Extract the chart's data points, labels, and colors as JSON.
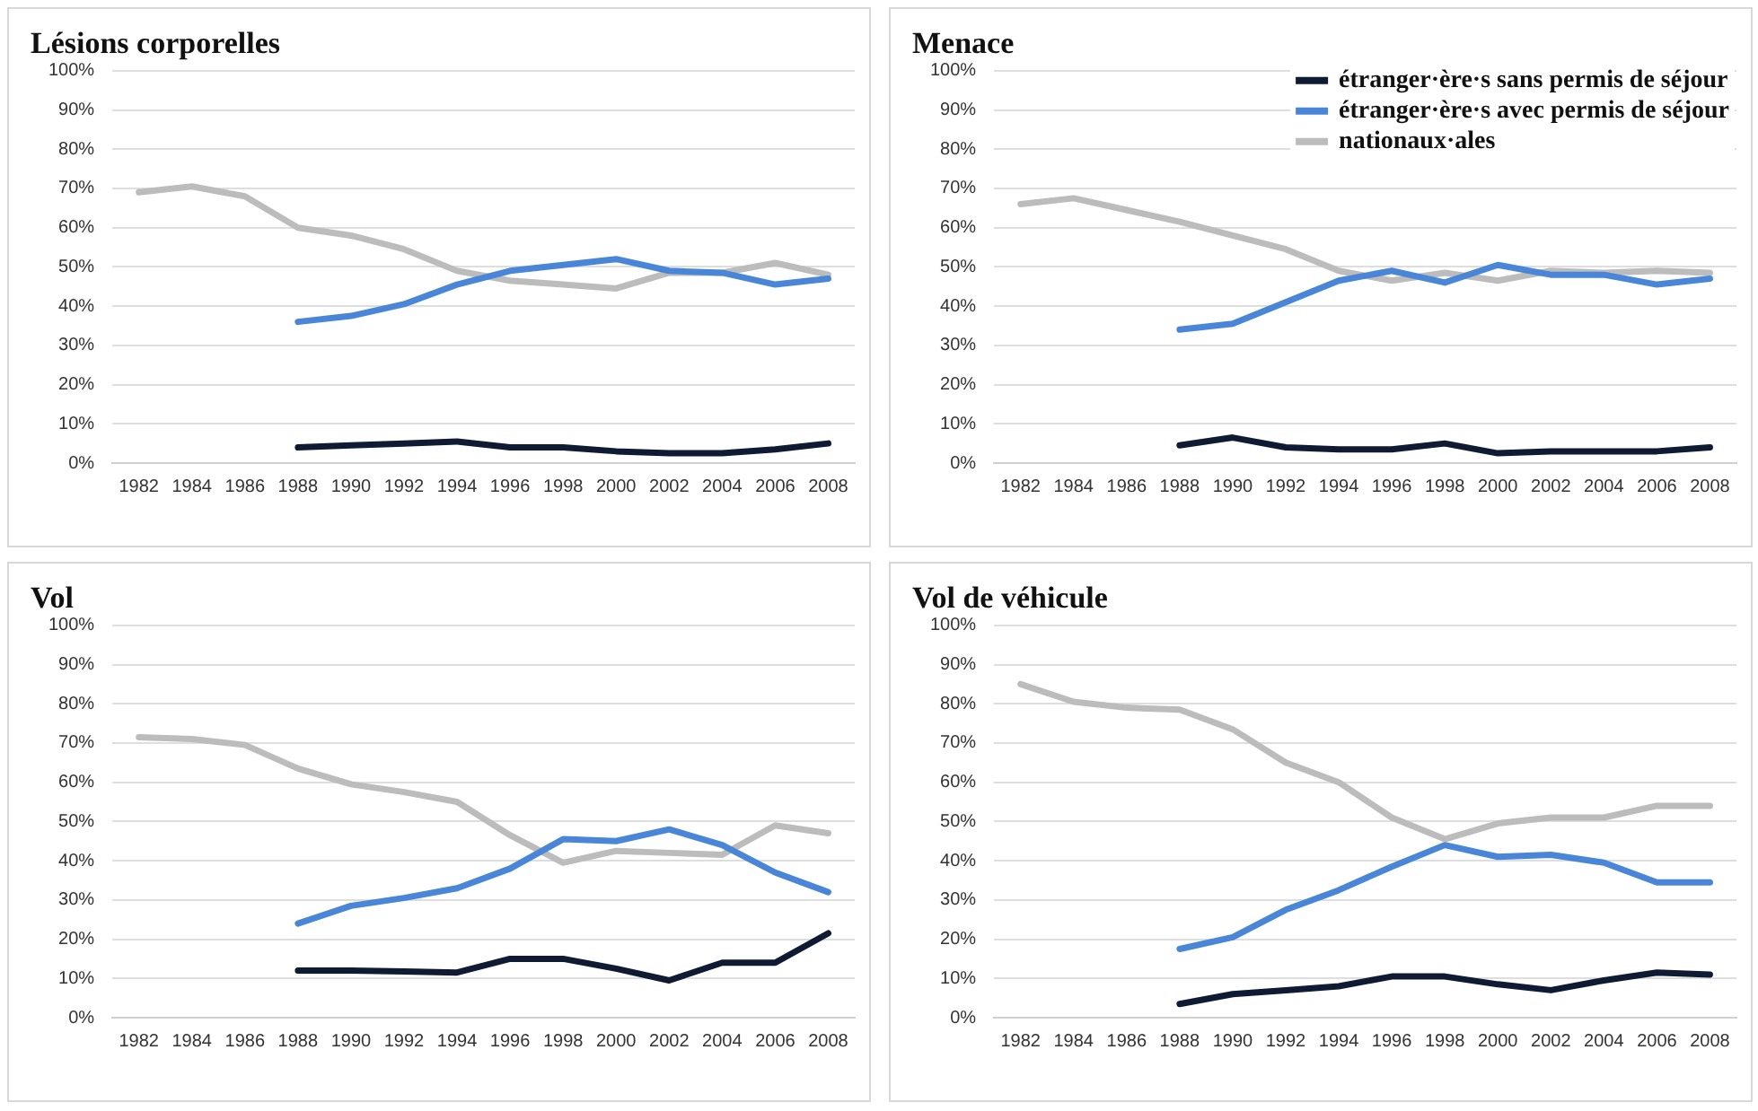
{
  "chart_data": [
    {
      "type": "line",
      "title": "Lésions corporelles",
      "categories": [
        "1982",
        "1984",
        "1986",
        "1988",
        "1990",
        "1992",
        "1994",
        "1996",
        "1998",
        "2000",
        "2002",
        "2004",
        "2006",
        "2008"
      ],
      "ylim": [
        0,
        100
      ],
      "yticks": [
        {
          "value": 0,
          "label": "0%"
        },
        {
          "value": 10,
          "label": "10%"
        },
        {
          "value": 20,
          "label": "20%"
        },
        {
          "value": 30,
          "label": "30%"
        },
        {
          "value": 40,
          "label": "40%"
        },
        {
          "value": 50,
          "label": "50%"
        },
        {
          "value": 60,
          "label": "60%"
        },
        {
          "value": 70,
          "label": "70%"
        },
        {
          "value": 80,
          "label": "80%"
        },
        {
          "value": 90,
          "label": "90%"
        },
        {
          "value": 100,
          "label": "100%"
        }
      ],
      "grid": "y",
      "marker": "none",
      "line_style": "solid",
      "series": [
        {
          "color": "#0f1a33",
          "values": [
            null,
            null,
            null,
            4,
            4.5,
            5,
            5.5,
            4,
            4,
            3,
            2.5,
            2.5,
            3.5,
            5
          ]
        },
        {
          "color": "#4a86d8",
          "values": [
            null,
            null,
            null,
            36,
            37.5,
            40.5,
            45.5,
            49,
            50.5,
            52,
            49,
            48.5,
            45.5,
            47
          ]
        },
        {
          "color": "#bcbcbc",
          "values": [
            69,
            70.5,
            68,
            60,
            58,
            54.5,
            49,
            46.5,
            45.5,
            44.5,
            48.5,
            48.5,
            51,
            48
          ]
        }
      ]
    },
    {
      "type": "line",
      "title": "Menace",
      "categories": [
        "1982",
        "1984",
        "1986",
        "1988",
        "1990",
        "1992",
        "1994",
        "1996",
        "1998",
        "2000",
        "2002",
        "2004",
        "2006",
        "2008"
      ],
      "ylim": [
        0,
        100
      ],
      "yticks": [
        {
          "value": 0,
          "label": "0%"
        },
        {
          "value": 10,
          "label": "10%"
        },
        {
          "value": 20,
          "label": "20%"
        },
        {
          "value": 30,
          "label": "30%"
        },
        {
          "value": 40,
          "label": "40%"
        },
        {
          "value": 50,
          "label": "50%"
        },
        {
          "value": 60,
          "label": "60%"
        },
        {
          "value": 70,
          "label": "70%"
        },
        {
          "value": 80,
          "label": "80%"
        },
        {
          "value": 90,
          "label": "90%"
        },
        {
          "value": 100,
          "label": "100%"
        }
      ],
      "grid": "y",
      "marker": "none",
      "line_style": "solid",
      "legend": "top right",
      "series": [
        {
          "name": "étranger·ère·s sans permis de séjour",
          "color": "#0f1a33",
          "values": [
            null,
            null,
            null,
            4.5,
            6.5,
            4,
            3.5,
            3.5,
            5,
            2.5,
            3,
            3,
            3,
            4
          ]
        },
        {
          "name": "étranger·ère·s avec permis de séjour",
          "color": "#4a86d8",
          "values": [
            null,
            null,
            null,
            34,
            35.5,
            41,
            46.5,
            49,
            46,
            50.5,
            48,
            48,
            45.5,
            47
          ]
        },
        {
          "name": "nationaux·ales",
          "color": "#bcbcbc",
          "values": [
            66,
            67.5,
            64.5,
            61.5,
            58,
            54.5,
            49,
            46.5,
            48.5,
            46.5,
            49,
            48.5,
            49,
            48.5
          ]
        }
      ]
    },
    {
      "type": "line",
      "title": "Vol",
      "categories": [
        "1982",
        "1984",
        "1986",
        "1988",
        "1990",
        "1992",
        "1994",
        "1996",
        "1998",
        "2000",
        "2002",
        "2004",
        "2006",
        "2008"
      ],
      "ylim": [
        0,
        100
      ],
      "yticks": [
        {
          "value": 0,
          "label": "0%"
        },
        {
          "value": 10,
          "label": "10%"
        },
        {
          "value": 20,
          "label": "20%"
        },
        {
          "value": 30,
          "label": "30%"
        },
        {
          "value": 40,
          "label": "40%"
        },
        {
          "value": 50,
          "label": "50%"
        },
        {
          "value": 60,
          "label": "60%"
        },
        {
          "value": 70,
          "label": "70%"
        },
        {
          "value": 80,
          "label": "80%"
        },
        {
          "value": 90,
          "label": "90%"
        },
        {
          "value": 100,
          "label": "100%"
        }
      ],
      "grid": "y",
      "marker": "none",
      "line_style": "solid",
      "series": [
        {
          "color": "#0f1a33",
          "values": [
            null,
            null,
            null,
            12,
            12,
            11.8,
            11.5,
            15,
            15,
            12.5,
            9.5,
            14,
            14,
            21.5
          ]
        },
        {
          "color": "#4a86d8",
          "values": [
            null,
            null,
            null,
            24,
            28.5,
            30.5,
            33,
            38,
            45.5,
            45,
            48,
            44,
            37,
            32
          ]
        },
        {
          "color": "#bcbcbc",
          "values": [
            71.5,
            71,
            69.5,
            63.5,
            59.5,
            57.5,
            55,
            46.5,
            39.5,
            42.5,
            42,
            41.5,
            49,
            47
          ]
        }
      ]
    },
    {
      "type": "line",
      "title": "Vol de véhicule",
      "categories": [
        "1982",
        "1984",
        "1986",
        "1988",
        "1990",
        "1992",
        "1994",
        "1996",
        "1998",
        "2000",
        "2002",
        "2004",
        "2006",
        "2008"
      ],
      "ylim": [
        0,
        100
      ],
      "yticks": [
        {
          "value": 0,
          "label": "0%"
        },
        {
          "value": 10,
          "label": "10%"
        },
        {
          "value": 20,
          "label": "20%"
        },
        {
          "value": 30,
          "label": "30%"
        },
        {
          "value": 40,
          "label": "40%"
        },
        {
          "value": 50,
          "label": "50%"
        },
        {
          "value": 60,
          "label": "60%"
        },
        {
          "value": 70,
          "label": "70%"
        },
        {
          "value": 80,
          "label": "80%"
        },
        {
          "value": 90,
          "label": "90%"
        },
        {
          "value": 100,
          "label": "100%"
        }
      ],
      "grid": "y",
      "marker": "none",
      "line_style": "solid",
      "series": [
        {
          "color": "#0f1a33",
          "values": [
            null,
            null,
            null,
            3.5,
            6,
            7,
            8,
            10.5,
            10.5,
            8.5,
            7,
            9.5,
            11.5,
            11
          ]
        },
        {
          "color": "#4a86d8",
          "values": [
            null,
            null,
            null,
            17.5,
            20.5,
            27.5,
            32.5,
            38.5,
            44,
            41,
            41.5,
            39.5,
            34.5,
            34.5
          ]
        },
        {
          "color": "#bcbcbc",
          "values": [
            85,
            80.5,
            79,
            78.5,
            73.5,
            65,
            60,
            51,
            45.5,
            49.5,
            51,
            51,
            54,
            54
          ]
        }
      ]
    }
  ]
}
